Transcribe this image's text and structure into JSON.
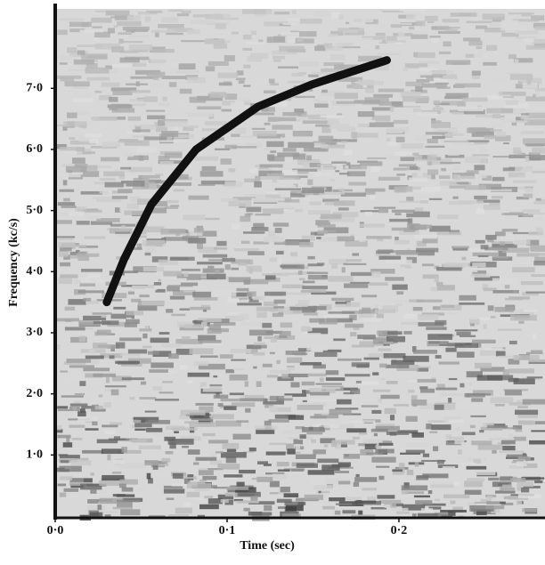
{
  "chart_data": {
    "type": "line",
    "x_label": "Time (sec)",
    "y_label": "Frequency (kc/s)",
    "x": [
      0.03,
      0.04,
      0.056,
      0.082,
      0.118,
      0.149,
      0.193
    ],
    "values": [
      3.5,
      4.2,
      5.1,
      6.0,
      6.7,
      7.06,
      7.46
    ],
    "color": "#111111",
    "xlim": [
      0,
      0.285
    ],
    "ylim": [
      0,
      8.3
    ],
    "xticks": [
      {
        "value": 0,
        "label": "0·0"
      },
      {
        "value": 0.1,
        "label": "0·1"
      },
      {
        "value": 0.2,
        "label": "0·2"
      }
    ],
    "yticks": [
      {
        "value": 1,
        "label": "1·0"
      },
      {
        "value": 2,
        "label": "2·0"
      },
      {
        "value": 3,
        "label": "3·0"
      },
      {
        "value": 4,
        "label": "4·0"
      },
      {
        "value": 5,
        "label": "5·0"
      },
      {
        "value": 6,
        "label": "6·0"
      },
      {
        "value": 7,
        "label": "7·0"
      }
    ]
  }
}
